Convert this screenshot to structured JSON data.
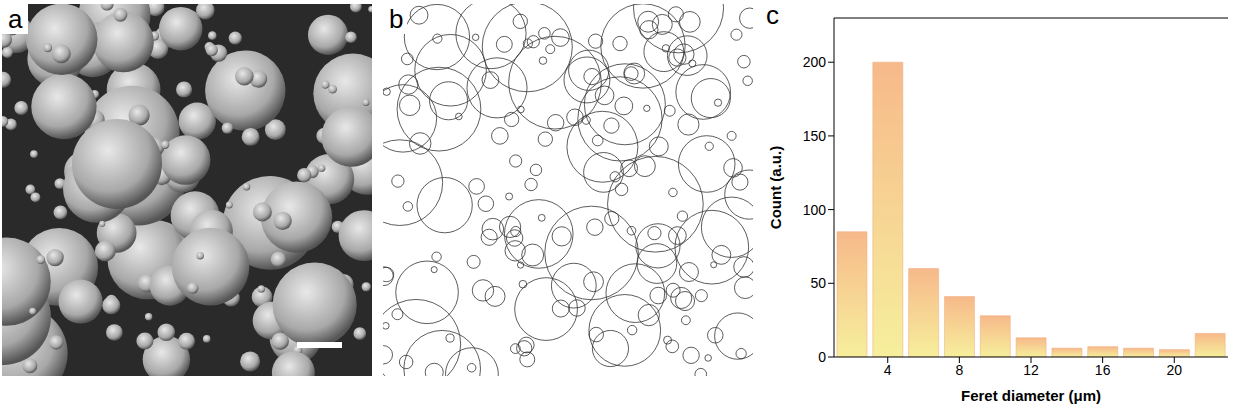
{
  "panel_labels": [
    "a",
    "b",
    "c"
  ],
  "chart_data": {
    "type": "histogram",
    "bins": [
      1,
      3,
      5,
      7,
      9,
      11,
      13,
      15,
      17,
      19,
      21,
      23
    ],
    "counts": [
      85,
      200,
      60,
      41,
      28,
      13,
      6,
      7,
      6,
      5,
      16
    ],
    "color": "#f7b98a",
    "xlabel": "Feret diameter (μm)",
    "ylabel": "Count (a.u.)",
    "xlim": [
      1,
      23
    ],
    "xticks": [
      4,
      8,
      12,
      16,
      20
    ],
    "ylim": [
      0,
      230
    ],
    "yticks": [
      0,
      50,
      100,
      150,
      200
    ]
  }
}
